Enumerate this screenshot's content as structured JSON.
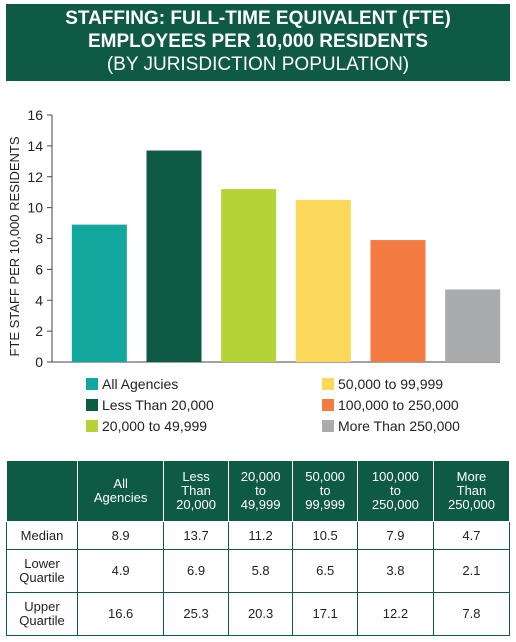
{
  "header": {
    "line1": "STAFFING: FULL-TIME EQUIVALENT (FTE)",
    "line2": "EMPLOYEES PER 10,000 RESIDENTS",
    "line3": "(BY JURISDICTION POPULATION)"
  },
  "chart_data": {
    "type": "bar",
    "ylabel": "FTE STAFF PER 10,000 RESIDENTS",
    "xlabel": "",
    "ylim": [
      0,
      16
    ],
    "yticks": [
      "0",
      "2",
      "4",
      "6",
      "8",
      "10",
      "12",
      "14",
      "16"
    ],
    "grid": false,
    "legend_position": "bottom",
    "categories": [
      "All Agencies",
      "Less Than 20,000",
      "20,000 to 49,999",
      "50,000 to 99,999",
      "100,000 to 250,000",
      "More Than 250,000"
    ],
    "values": [
      8.9,
      13.7,
      11.2,
      10.5,
      7.9,
      4.7
    ],
    "colors": [
      "#13a89e",
      "#0f5a45",
      "#b5d334",
      "#fcd85a",
      "#f47b42",
      "#aaabad"
    ]
  },
  "table": {
    "headers": [
      "",
      "All Agencies",
      "Less Than 20,000",
      "20,000 to 49,999",
      "50,000 to 99,999",
      "100,000 to 250,000",
      "More Than 250,000"
    ],
    "header_lines": [
      [],
      [
        "All",
        "Agencies"
      ],
      [
        "Less",
        "Than",
        "20,000"
      ],
      [
        "20,000",
        "to",
        "49,999"
      ],
      [
        "50,000",
        "to",
        "99,999"
      ],
      [
        "100,000",
        "to",
        "250,000"
      ],
      [
        "More",
        "Than",
        "250,000"
      ]
    ],
    "rows": [
      {
        "label": "Median",
        "label_lines": [
          "Median"
        ],
        "values": [
          "8.9",
          "13.7",
          "11.2",
          "10.5",
          "7.9",
          "4.7"
        ]
      },
      {
        "label": "Lower Quartile",
        "label_lines": [
          "Lower",
          "Quartile"
        ],
        "values": [
          "4.9",
          "6.9",
          "5.8",
          "6.5",
          "3.8",
          "2.1"
        ]
      },
      {
        "label": "Upper Quartile",
        "label_lines": [
          "Upper",
          "Quartile"
        ],
        "values": [
          "16.6",
          "25.3",
          "20.3",
          "17.1",
          "12.2",
          "7.8"
        ]
      }
    ]
  }
}
